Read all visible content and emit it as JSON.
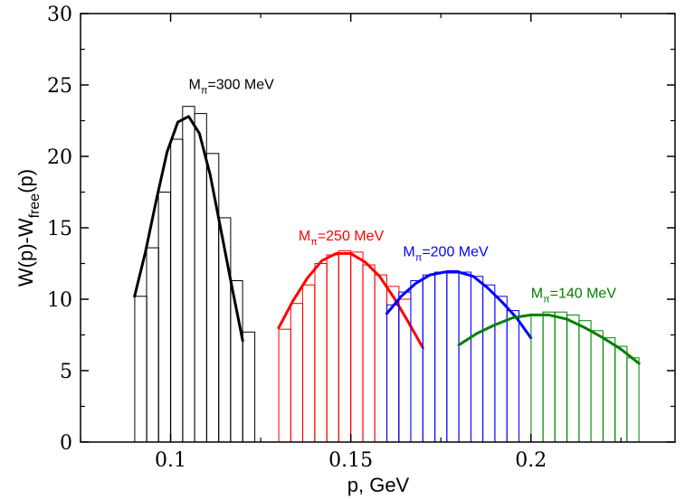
{
  "chart_data": {
    "type": "bar",
    "title": "",
    "xlabel": "p, GeV",
    "ylabel": {
      "main": "W(p)-W",
      "sub": "free",
      "tail": "(p)"
    },
    "xlim": [
      0.075,
      0.24
    ],
    "ylim": [
      0,
      30
    ],
    "x_ticks": [
      0.1,
      0.15,
      0.2
    ],
    "x_tick_labels": [
      "0.1",
      "0.15",
      "0.2"
    ],
    "y_ticks": [
      0,
      5,
      10,
      15,
      20,
      25,
      30
    ],
    "y_tick_labels": [
      "0",
      "5",
      "10",
      "15",
      "20",
      "25",
      "30"
    ],
    "grid": false,
    "series": [
      {
        "name": "M_π=300 MeV",
        "label": {
          "prefix": "M",
          "sub": "π",
          "suffix": "=300 MeV"
        },
        "label_anchor": [
          0.105,
          24.7
        ],
        "color": "#000000",
        "bin_width": 0.00333,
        "bins": [
          {
            "x": 0.0917,
            "y": 10.2
          },
          {
            "x": 0.095,
            "y": 13.6
          },
          {
            "x": 0.0983,
            "y": 17.5
          },
          {
            "x": 0.1017,
            "y": 21.2
          },
          {
            "x": 0.105,
            "y": 23.5
          },
          {
            "x": 0.1083,
            "y": 23.0
          },
          {
            "x": 0.1117,
            "y": 20.2
          },
          {
            "x": 0.115,
            "y": 15.7
          },
          {
            "x": 0.1183,
            "y": 11.3
          },
          {
            "x": 0.1217,
            "y": 7.7
          }
        ],
        "fit": {
          "x": [
            0.09,
            0.093,
            0.096,
            0.099,
            0.102,
            0.105,
            0.108,
            0.111,
            0.114,
            0.117,
            0.12
          ],
          "y": [
            10.2,
            13.3,
            16.9,
            20.3,
            22.4,
            22.8,
            21.6,
            18.7,
            14.8,
            10.9,
            7.1
          ]
        }
      },
      {
        "name": "M_π=250 MeV",
        "label": {
          "prefix": "M",
          "sub": "π",
          "suffix": "=250 MeV"
        },
        "label_anchor": [
          0.1355,
          14.1
        ],
        "color": "#ff0000",
        "bin_width": 0.00333,
        "bins": [
          {
            "x": 0.1317,
            "y": 7.9
          },
          {
            "x": 0.135,
            "y": 9.7
          },
          {
            "x": 0.1383,
            "y": 11.0
          },
          {
            "x": 0.1417,
            "y": 12.5
          },
          {
            "x": 0.145,
            "y": 13.1
          },
          {
            "x": 0.1483,
            "y": 13.4
          },
          {
            "x": 0.1517,
            "y": 13.3
          },
          {
            "x": 0.155,
            "y": 12.4
          },
          {
            "x": 0.1583,
            "y": 11.7
          },
          {
            "x": 0.1617,
            "y": 10.9
          },
          {
            "x": 0.165,
            "y": 10.0
          }
        ],
        "fit": {
          "x": [
            0.13,
            0.134,
            0.138,
            0.142,
            0.146,
            0.15,
            0.154,
            0.158,
            0.162,
            0.166,
            0.17
          ],
          "y": [
            8.0,
            9.9,
            11.5,
            12.7,
            13.2,
            13.2,
            12.6,
            11.6,
            10.1,
            8.4,
            6.6
          ]
        }
      },
      {
        "name": "M_π=200 MeV",
        "label": {
          "prefix": "M",
          "sub": "π",
          "suffix": "=200 MeV"
        },
        "label_anchor": [
          0.1645,
          13.0
        ],
        "color": "#0000ff",
        "bin_width": 0.00333,
        "bins": [
          {
            "x": 0.1617,
            "y": 9.6
          },
          {
            "x": 0.165,
            "y": 10.5
          },
          {
            "x": 0.1683,
            "y": 11.3
          },
          {
            "x": 0.1717,
            "y": 11.7
          },
          {
            "x": 0.175,
            "y": 11.9
          },
          {
            "x": 0.1783,
            "y": 12.0
          },
          {
            "x": 0.1817,
            "y": 11.9
          },
          {
            "x": 0.185,
            "y": 11.6
          },
          {
            "x": 0.1883,
            "y": 11.0
          },
          {
            "x": 0.1917,
            "y": 10.2
          },
          {
            "x": 0.195,
            "y": 9.2
          }
        ],
        "fit": {
          "x": [
            0.16,
            0.164,
            0.168,
            0.172,
            0.176,
            0.18,
            0.184,
            0.188,
            0.192,
            0.196,
            0.2
          ],
          "y": [
            9.0,
            10.2,
            11.1,
            11.7,
            11.9,
            11.9,
            11.6,
            10.8,
            9.8,
            8.7,
            7.3
          ]
        }
      },
      {
        "name": "M_π=140 MeV",
        "label": {
          "prefix": "M",
          "sub": "π",
          "suffix": "=140 MeV"
        },
        "label_anchor": [
          0.2,
          10.1
        ],
        "color": "#008000",
        "bin_width": 0.00333,
        "bins": [
          {
            "x": 0.2017,
            "y": 8.9
          },
          {
            "x": 0.205,
            "y": 9.1
          },
          {
            "x": 0.2083,
            "y": 9.1
          },
          {
            "x": 0.2117,
            "y": 8.9
          },
          {
            "x": 0.215,
            "y": 8.5
          },
          {
            "x": 0.2183,
            "y": 7.8
          },
          {
            "x": 0.2217,
            "y": 7.3
          },
          {
            "x": 0.225,
            "y": 6.7
          },
          {
            "x": 0.2283,
            "y": 5.9
          }
        ],
        "fit": {
          "x": [
            0.18,
            0.185,
            0.19,
            0.195,
            0.2,
            0.205,
            0.21,
            0.215,
            0.22,
            0.225,
            0.23
          ],
          "y": [
            6.8,
            7.6,
            8.2,
            8.7,
            8.9,
            8.9,
            8.6,
            8.0,
            7.3,
            6.5,
            5.5
          ]
        }
      }
    ]
  }
}
